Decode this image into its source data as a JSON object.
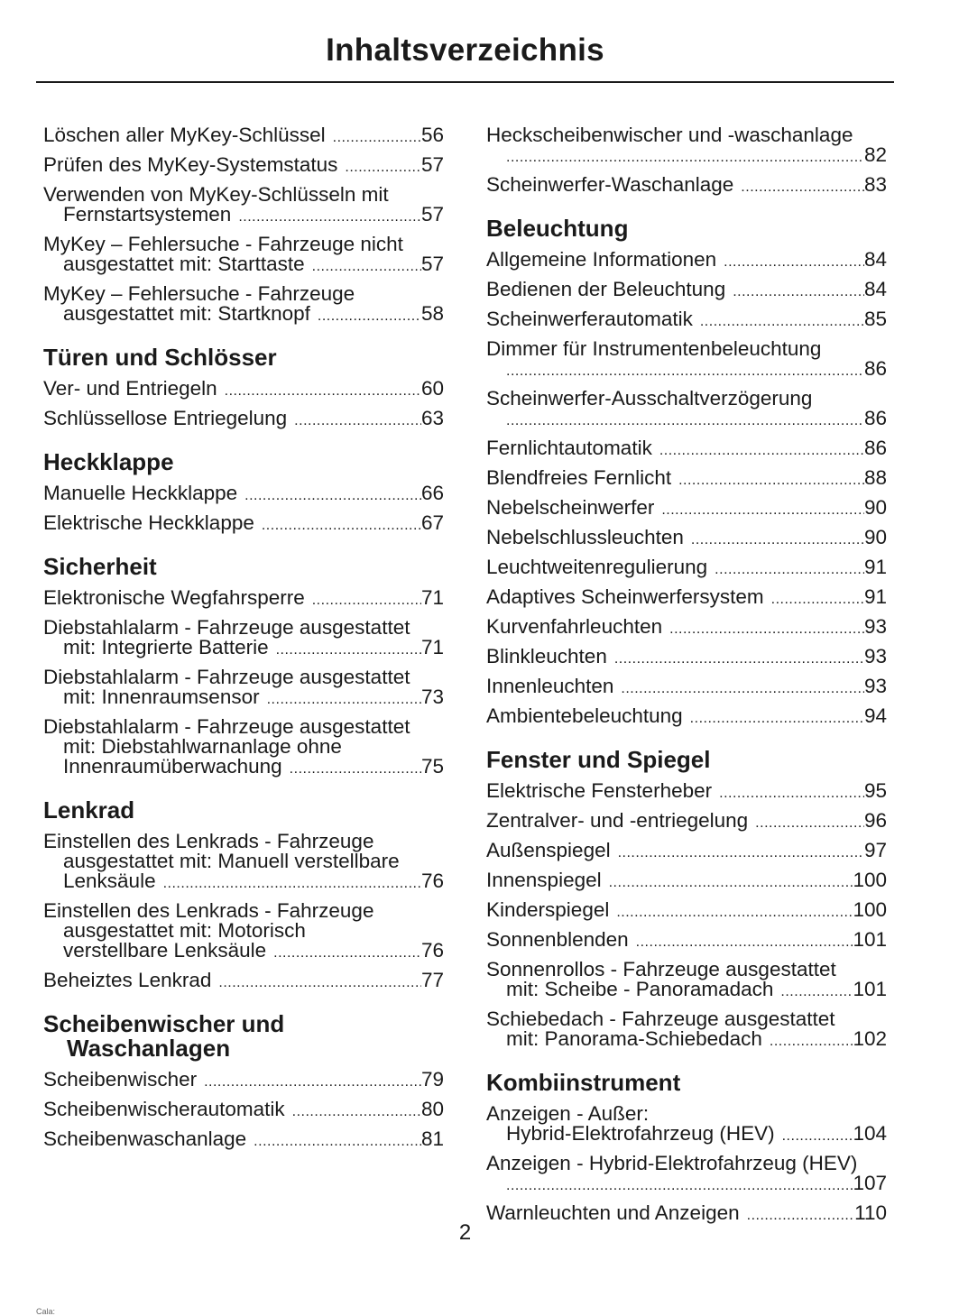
{
  "title": "Inhaltsverzeichnis",
  "page_number": "2",
  "footer_fragment": "Cala:",
  "columns": [
    [
      {
        "type": "entry",
        "lines": [
          "Löschen aller MyKey-Schlüssel"
        ],
        "page": "56"
      },
      {
        "type": "entry",
        "lines": [
          "Prüfen des MyKey-Systemstatus"
        ],
        "page": "57"
      },
      {
        "type": "entry",
        "lines": [
          "Verwenden von MyKey-Schlüsseln mit",
          "Fernstartsystemen"
        ],
        "page": "57"
      },
      {
        "type": "entry",
        "lines": [
          "MyKey – Fehlersuche - Fahrzeuge nicht",
          "ausgestattet mit: Starttaste"
        ],
        "page": "57"
      },
      {
        "type": "entry",
        "lines": [
          "MyKey – Fehlersuche - Fahrzeuge",
          "ausgestattet mit: Startknopf"
        ],
        "page": "58"
      },
      {
        "type": "heading",
        "lines": [
          "Türen und Schlösser"
        ]
      },
      {
        "type": "entry",
        "lines": [
          "Ver- und Entriegeln"
        ],
        "page": "60"
      },
      {
        "type": "entry",
        "lines": [
          "Schlüssellose Entriegelung"
        ],
        "page": "63"
      },
      {
        "type": "heading",
        "lines": [
          "Heckklappe"
        ]
      },
      {
        "type": "entry",
        "lines": [
          "Manuelle Heckklappe"
        ],
        "page": "66"
      },
      {
        "type": "entry",
        "lines": [
          "Elektrische Heckklappe"
        ],
        "page": "67"
      },
      {
        "type": "heading",
        "lines": [
          "Sicherheit"
        ]
      },
      {
        "type": "entry",
        "lines": [
          "Elektronische Wegfahrsperre"
        ],
        "page": "71"
      },
      {
        "type": "entry",
        "lines": [
          "Diebstahlalarm - Fahrzeuge ausgestattet",
          "mit: Integrierte Batterie"
        ],
        "page": "71"
      },
      {
        "type": "entry",
        "lines": [
          "Diebstahlalarm - Fahrzeuge ausgestattet",
          "mit: Innenraumsensor"
        ],
        "page": "73"
      },
      {
        "type": "entry",
        "lines": [
          "Diebstahlalarm - Fahrzeuge ausgestattet",
          "mit: Diebstahlwarnanlage ohne",
          "Innenraumüberwachung"
        ],
        "page": "75"
      },
      {
        "type": "heading",
        "lines": [
          "Lenkrad"
        ]
      },
      {
        "type": "entry",
        "lines": [
          "Einstellen des Lenkrads - Fahrzeuge",
          "ausgestattet mit: Manuell verstellbare",
          "Lenksäule"
        ],
        "page": "76"
      },
      {
        "type": "entry",
        "lines": [
          "Einstellen des Lenkrads - Fahrzeuge",
          "ausgestattet mit: Motorisch",
          "verstellbare Lenksäule"
        ],
        "page": "76"
      },
      {
        "type": "entry",
        "lines": [
          "Beheiztes Lenkrad"
        ],
        "page": "77"
      },
      {
        "type": "heading",
        "lines": [
          "Scheibenwischer und",
          "Waschanlagen"
        ]
      },
      {
        "type": "entry",
        "lines": [
          "Scheibenwischer"
        ],
        "page": "79"
      },
      {
        "type": "entry",
        "lines": [
          "Scheibenwischerautomatik"
        ],
        "page": "80"
      },
      {
        "type": "entry",
        "lines": [
          "Scheibenwaschanlage"
        ],
        "page": "81"
      }
    ],
    [
      {
        "type": "entry",
        "lines": [
          "Heckscheibenwischer und -waschanlage",
          ""
        ],
        "page": "82"
      },
      {
        "type": "entry",
        "lines": [
          "Scheinwerfer-Waschanlage"
        ],
        "page": "83"
      },
      {
        "type": "heading",
        "lines": [
          "Beleuchtung"
        ]
      },
      {
        "type": "entry",
        "lines": [
          "Allgemeine Informationen"
        ],
        "page": "84"
      },
      {
        "type": "entry",
        "lines": [
          "Bedienen der Beleuchtung"
        ],
        "page": "84"
      },
      {
        "type": "entry",
        "lines": [
          "Scheinwerferautomatik"
        ],
        "page": "85"
      },
      {
        "type": "entry",
        "lines": [
          "Dimmer für Instrumentenbeleuchtung",
          ""
        ],
        "page": "86"
      },
      {
        "type": "entry",
        "lines": [
          "Scheinwerfer-Ausschaltverzögerung",
          ""
        ],
        "page": "86"
      },
      {
        "type": "entry",
        "lines": [
          "Fernlichtautomatik"
        ],
        "page": "86"
      },
      {
        "type": "entry",
        "lines": [
          "Blendfreies Fernlicht"
        ],
        "page": "88"
      },
      {
        "type": "entry",
        "lines": [
          "Nebelscheinwerfer"
        ],
        "page": "90"
      },
      {
        "type": "entry",
        "lines": [
          "Nebelschlussleuchten"
        ],
        "page": "90"
      },
      {
        "type": "entry",
        "lines": [
          "Leuchtweitenregulierung"
        ],
        "page": "91"
      },
      {
        "type": "entry",
        "lines": [
          "Adaptives Scheinwerfersystem"
        ],
        "page": "91"
      },
      {
        "type": "entry",
        "lines": [
          "Kurvenfahrleuchten"
        ],
        "page": "93"
      },
      {
        "type": "entry",
        "lines": [
          "Blinkleuchten"
        ],
        "page": "93"
      },
      {
        "type": "entry",
        "lines": [
          "Innenleuchten"
        ],
        "page": "93"
      },
      {
        "type": "entry",
        "lines": [
          "Ambientebeleuchtung"
        ],
        "page": "94"
      },
      {
        "type": "heading",
        "lines": [
          "Fenster und Spiegel"
        ]
      },
      {
        "type": "entry",
        "lines": [
          "Elektrische Fensterheber"
        ],
        "page": "95"
      },
      {
        "type": "entry",
        "lines": [
          "Zentralver- und -entriegelung"
        ],
        "page": "96"
      },
      {
        "type": "entry",
        "lines": [
          "Außenspiegel"
        ],
        "page": "97"
      },
      {
        "type": "entry",
        "lines": [
          "Innenspiegel"
        ],
        "page": "100"
      },
      {
        "type": "entry",
        "lines": [
          "Kinderspiegel"
        ],
        "page": "100"
      },
      {
        "type": "entry",
        "lines": [
          "Sonnenblenden"
        ],
        "page": "101"
      },
      {
        "type": "entry",
        "lines": [
          "Sonnenrollos - Fahrzeuge ausgestattet",
          "mit: Scheibe - Panoramadach"
        ],
        "page": "101"
      },
      {
        "type": "entry",
        "lines": [
          "Schiebedach - Fahrzeuge ausgestattet",
          "mit: Panorama-Schiebedach"
        ],
        "page": "102"
      },
      {
        "type": "heading",
        "lines": [
          "Kombiinstrument"
        ]
      },
      {
        "type": "entry",
        "lines": [
          "Anzeigen - Außer:",
          "Hybrid-Elektrofahrzeug (HEV)"
        ],
        "page": "104"
      },
      {
        "type": "entry",
        "lines": [
          "Anzeigen - Hybrid-Elektrofahrzeug (HEV)",
          ""
        ],
        "page": "107"
      },
      {
        "type": "entry",
        "lines": [
          "Warnleuchten und Anzeigen"
        ],
        "page": "110"
      }
    ]
  ]
}
